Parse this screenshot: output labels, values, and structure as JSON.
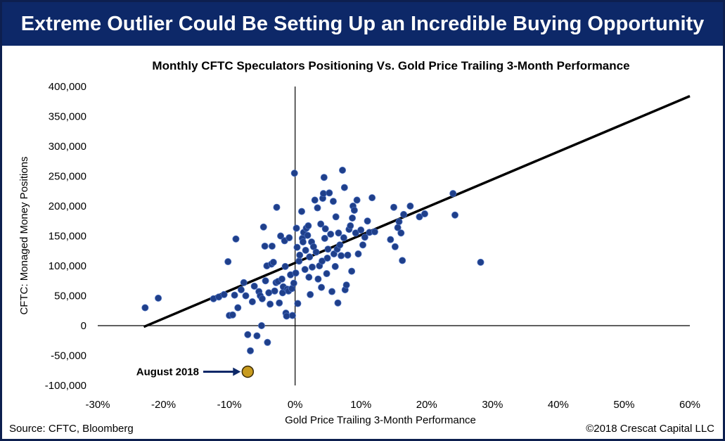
{
  "header": {
    "title": "Extreme Outlier Could Be Setting Up an Incredible Buying Opportunity"
  },
  "footer": {
    "source": "Source: CFTC, Bloomberg",
    "copyright": "©2018 Crescat Capital LLC"
  },
  "colors": {
    "banner": "#0d2868",
    "point": "#1f3f8a",
    "highlight": "#c89b1e",
    "arrow": "#0d2868"
  },
  "chart_data": {
    "type": "scatter",
    "title": "Monthly CFTC Speculators Positioning Vs. Gold Price Trailing 3-Month Performance",
    "xlabel": "Gold Price Trailing 3-Month Performance",
    "ylabel": "CFTC: Monaged Money Positions",
    "xlim": [
      -30,
      60
    ],
    "ylim": [
      -100000,
      400000
    ],
    "x_ticks": [
      "-30%",
      "-20%",
      "-10%",
      "0%",
      "10%",
      "20%",
      "30%",
      "40%",
      "50%",
      "60%"
    ],
    "x_tick_values": [
      -30,
      -20,
      -10,
      0,
      10,
      20,
      30,
      40,
      50,
      60
    ],
    "y_ticks": [
      "-100,000",
      "-50,000",
      "0",
      "50,000",
      "100,000",
      "150,000",
      "200,000",
      "250,000",
      "300,000",
      "350,000",
      "400,000"
    ],
    "y_tick_values": [
      -100000,
      -50000,
      0,
      50000,
      100000,
      150000,
      200000,
      250000,
      300000,
      350000,
      400000
    ],
    "grid": false,
    "trendline": {
      "x": [
        -23,
        60
      ],
      "y": [
        -2000,
        384000
      ]
    },
    "highlight": {
      "label": "August 2018",
      "x": -7.2,
      "y": -77000
    },
    "points": [
      [
        -22.8,
        30000
      ],
      [
        -20.8,
        46000
      ],
      [
        -12.4,
        45000
      ],
      [
        -11.6,
        48000
      ],
      [
        -10.8,
        52000
      ],
      [
        -10.2,
        107000
      ],
      [
        -10.0,
        17000
      ],
      [
        -9.5,
        18000
      ],
      [
        -9.2,
        51000
      ],
      [
        -9.0,
        145000
      ],
      [
        -8.7,
        30000
      ],
      [
        -8.2,
        60000
      ],
      [
        -7.8,
        72000
      ],
      [
        -7.5,
        50000
      ],
      [
        -7.2,
        -15000
      ],
      [
        -6.8,
        -42000
      ],
      [
        -6.5,
        40000
      ],
      [
        -6.2,
        66000
      ],
      [
        -5.8,
        -17000
      ],
      [
        -5.5,
        57000
      ],
      [
        -5.3,
        50000
      ],
      [
        -5.1,
        0
      ],
      [
        -5.0,
        45000
      ],
      [
        -4.8,
        165000
      ],
      [
        -4.6,
        133000
      ],
      [
        -4.5,
        75000
      ],
      [
        -4.3,
        100000
      ],
      [
        -4.2,
        -28000
      ],
      [
        -4.0,
        55000
      ],
      [
        -3.8,
        36000
      ],
      [
        -3.6,
        103000
      ],
      [
        -3.5,
        133000
      ],
      [
        -3.3,
        106000
      ],
      [
        -3.1,
        58000
      ],
      [
        -2.9,
        72000
      ],
      [
        -2.8,
        198000
      ],
      [
        -2.6,
        74000
      ],
      [
        -2.4,
        38000
      ],
      [
        -2.2,
        150000
      ],
      [
        -2.0,
        78000
      ],
      [
        -1.9,
        55000
      ],
      [
        -1.8,
        65000
      ],
      [
        -1.6,
        142000
      ],
      [
        -1.5,
        99000
      ],
      [
        -1.4,
        21000
      ],
      [
        -1.3,
        16000
      ],
      [
        -1.2,
        61000
      ],
      [
        -1.0,
        58000
      ],
      [
        -0.9,
        147000
      ],
      [
        -0.7,
        85000
      ],
      [
        -0.5,
        62000
      ],
      [
        -0.4,
        17000
      ],
      [
        -0.2,
        71000
      ],
      [
        -0.1,
        255000
      ],
      [
        0.1,
        88000
      ],
      [
        0.2,
        163000
      ],
      [
        0.3,
        131000
      ],
      [
        0.4,
        37000
      ],
      [
        0.6,
        108000
      ],
      [
        0.7,
        118000
      ],
      [
        1.0,
        191000
      ],
      [
        1.1,
        146000
      ],
      [
        1.2,
        140000
      ],
      [
        1.3,
        156000
      ],
      [
        1.5,
        94000
      ],
      [
        1.6,
        126000
      ],
      [
        1.7,
        163000
      ],
      [
        1.9,
        151000
      ],
      [
        2.0,
        167000
      ],
      [
        2.1,
        81000
      ],
      [
        2.2,
        115000
      ],
      [
        2.3,
        52000
      ],
      [
        2.5,
        140000
      ],
      [
        2.6,
        98000
      ],
      [
        2.8,
        132000
      ],
      [
        3.0,
        210000
      ],
      [
        3.2,
        123000
      ],
      [
        3.4,
        197000
      ],
      [
        3.5,
        78000
      ],
      [
        3.7,
        100000
      ],
      [
        3.9,
        170000
      ],
      [
        4.0,
        64000
      ],
      [
        4.1,
        108000
      ],
      [
        4.2,
        213000
      ],
      [
        4.3,
        221000
      ],
      [
        4.4,
        248000
      ],
      [
        4.5,
        146000
      ],
      [
        4.6,
        162000
      ],
      [
        4.8,
        87000
      ],
      [
        4.9,
        113000
      ],
      [
        5.0,
        128000
      ],
      [
        5.2,
        222000
      ],
      [
        5.4,
        153000
      ],
      [
        5.6,
        57000
      ],
      [
        5.8,
        208000
      ],
      [
        5.9,
        120000
      ],
      [
        6.1,
        99000
      ],
      [
        6.2,
        182000
      ],
      [
        6.4,
        128000
      ],
      [
        6.5,
        38000
      ],
      [
        6.6,
        155000
      ],
      [
        6.8,
        135000
      ],
      [
        7.0,
        117000
      ],
      [
        7.2,
        260000
      ],
      [
        7.4,
        147000
      ],
      [
        7.5,
        231000
      ],
      [
        7.6,
        60000
      ],
      [
        7.8,
        68000
      ],
      [
        8.0,
        118000
      ],
      [
        8.2,
        161000
      ],
      [
        8.4,
        167000
      ],
      [
        8.6,
        91000
      ],
      [
        8.7,
        180000
      ],
      [
        8.8,
        200000
      ],
      [
        9.0,
        193000
      ],
      [
        9.2,
        155000
      ],
      [
        9.4,
        210000
      ],
      [
        9.6,
        120000
      ],
      [
        10.0,
        160000
      ],
      [
        10.3,
        135000
      ],
      [
        10.6,
        148000
      ],
      [
        11.0,
        175000
      ],
      [
        11.3,
        156000
      ],
      [
        11.7,
        214000
      ],
      [
        12.1,
        157000
      ],
      [
        14.5,
        144000
      ],
      [
        15.0,
        198000
      ],
      [
        15.2,
        132000
      ],
      [
        15.6,
        164000
      ],
      [
        15.8,
        174000
      ],
      [
        16.1,
        155000
      ],
      [
        16.3,
        109000
      ],
      [
        16.5,
        186000
      ],
      [
        17.5,
        200000
      ],
      [
        18.9,
        182000
      ],
      [
        19.7,
        187000
      ],
      [
        24.0,
        221000
      ],
      [
        24.3,
        185000
      ],
      [
        28.2,
        106000
      ]
    ]
  }
}
